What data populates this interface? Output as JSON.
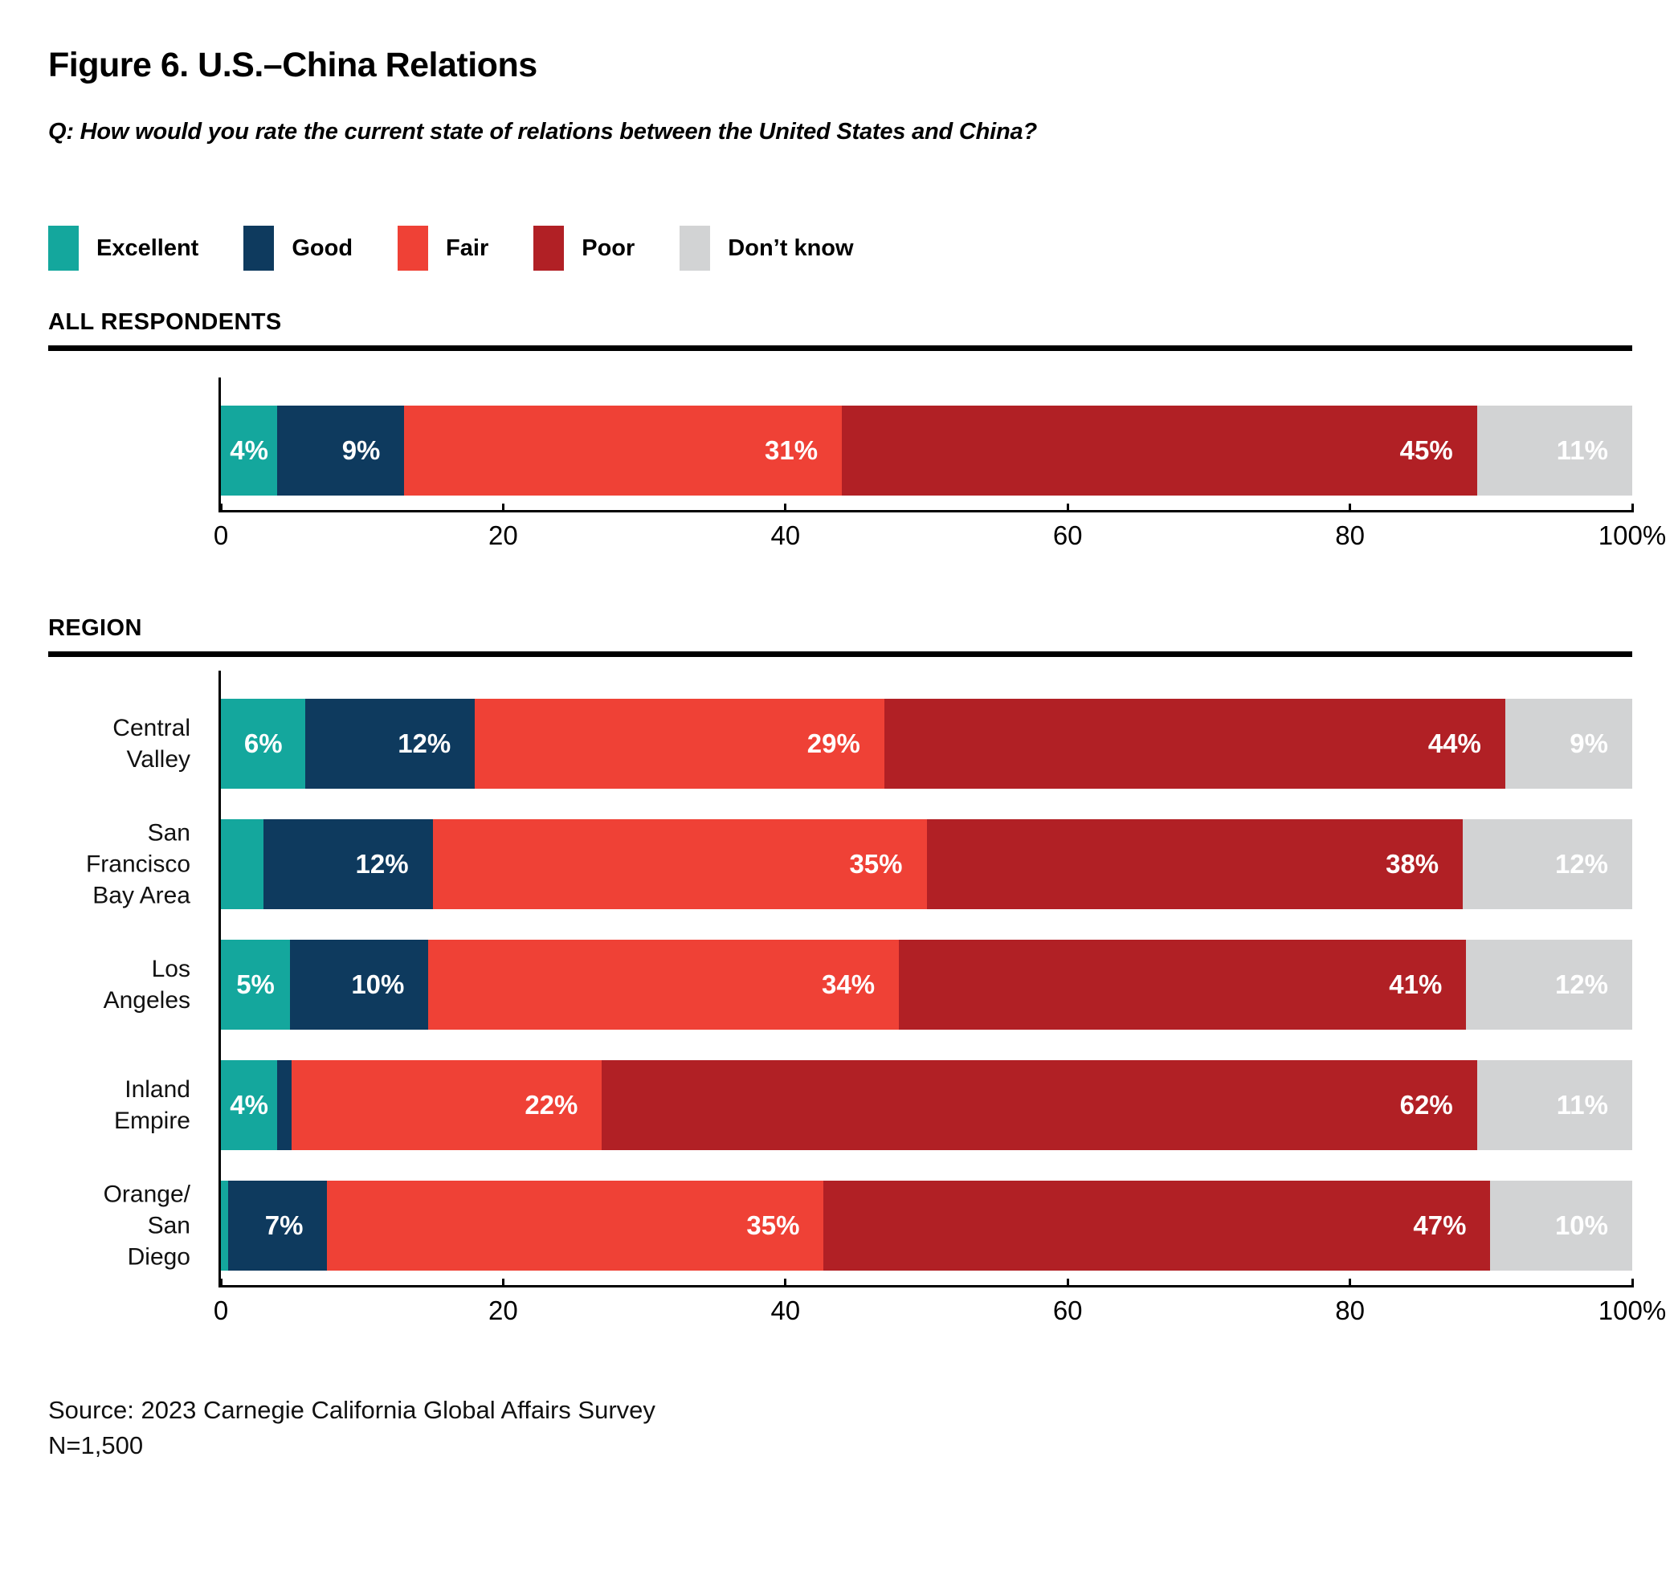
{
  "figure": {
    "title": "Figure 6. U.S.–China Relations",
    "question": "Q: How would you rate the current state of relations between the United States and China?",
    "source_line1": "Source: 2023 Carnegie California Global Affairs Survey",
    "source_line2": "N=1,500"
  },
  "legend": [
    {
      "label": "Excellent",
      "color": "#14A79D"
    },
    {
      "label": "Good",
      "color": "#0E3A5E"
    },
    {
      "label": "Fair",
      "color": "#EF4136"
    },
    {
      "label": "Poor",
      "color": "#B12025"
    },
    {
      "label": "Don’t know",
      "color": "#D2D3D4"
    }
  ],
  "chart_data": {
    "type": "bar",
    "orientation": "horizontal",
    "stacked": true,
    "unit": "percent",
    "series_names": [
      "Excellent",
      "Good",
      "Fair",
      "Poor",
      "Don’t know"
    ],
    "colors": [
      "#14A79D",
      "#0E3A5E",
      "#EF4136",
      "#B12025",
      "#D2D3D4"
    ],
    "axis": {
      "range": [
        0,
        100
      ],
      "ticks": [
        "0",
        "20",
        "40",
        "60",
        "80",
        "100%"
      ],
      "tick_positions": [
        0,
        20,
        40,
        60,
        80,
        100
      ]
    },
    "sections": [
      {
        "heading": "ALL RESPONDENTS",
        "rows": [
          {
            "label": "",
            "values": [
              4,
              9,
              31,
              45,
              11
            ],
            "display": [
              "4%",
              "9%",
              "31%",
              "45%",
              "11%"
            ]
          }
        ]
      },
      {
        "heading": "REGION",
        "rows": [
          {
            "label": "Central Valley",
            "values": [
              6,
              12,
              29,
              44,
              9
            ],
            "display": [
              "6%",
              "12%",
              "29%",
              "44%",
              "9%"
            ]
          },
          {
            "label": "San Francisco\nBay Area",
            "values": [
              3,
              12,
              35,
              38,
              12
            ],
            "display": [
              "",
              "12%",
              "35%",
              "38%",
              "12%"
            ]
          },
          {
            "label": "Los Angeles",
            "values": [
              5,
              10,
              34,
              41,
              12
            ],
            "display": [
              "5%",
              "10%",
              "34%",
              "41%",
              "12%"
            ]
          },
          {
            "label": "Inland Empire",
            "values": [
              4,
              1,
              22,
              62,
              11
            ],
            "display": [
              "4%",
              "",
              "22%",
              "62%",
              "11%"
            ]
          },
          {
            "label": "Orange/\nSan Diego",
            "values": [
              0.5,
              7,
              35,
              47,
              10
            ],
            "display": [
              "",
              "7%",
              "35%",
              "47%",
              "10%"
            ]
          }
        ]
      }
    ]
  }
}
